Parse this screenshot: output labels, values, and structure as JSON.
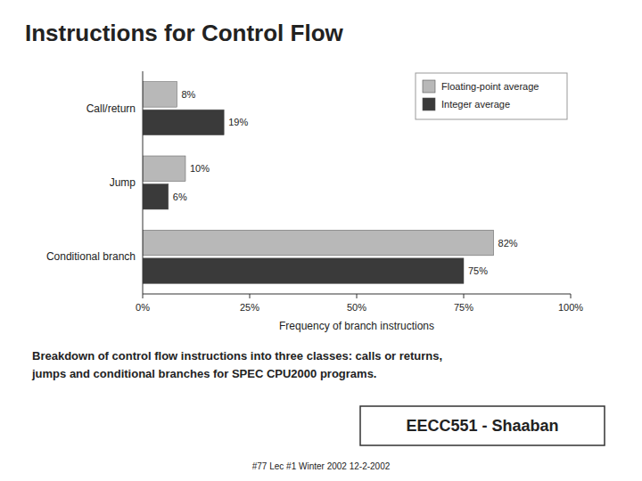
{
  "chart_data": {
    "type": "bar",
    "orientation": "horizontal",
    "title": "Instructions for Control Flow",
    "categories": [
      "Conditional branch",
      "Jump",
      "Call/return"
    ],
    "series": [
      {
        "name": "Floating-point average",
        "color": "#b8b8b8",
        "values": [
          82,
          10,
          8
        ],
        "value_labels": [
          "82%",
          "10%",
          "8%"
        ]
      },
      {
        "name": "Integer average",
        "color": "#3a3a3a",
        "values": [
          75,
          6,
          19
        ],
        "value_labels": [
          "75%",
          "6%",
          "19%"
        ]
      }
    ],
    "xlabel": "Frequency of branch instructions",
    "xlim": [
      0,
      100
    ],
    "xticks": [
      {
        "value": 0,
        "label": "0%"
      },
      {
        "value": 25,
        "label": "25%"
      },
      {
        "value": 50,
        "label": "50%"
      },
      {
        "value": 75,
        "label": "75%"
      },
      {
        "value": 100,
        "label": "100%"
      }
    ],
    "legend": "upper right",
    "grid": false,
    "data_labels": true,
    "annotations": [
      "Breakdown of control flow instructions into three classes: calls or returns,",
      "jumps and conditional branches for SPEC CPU2000 programs.",
      "EECC551 - Shaaban",
      "#77   Lec #1 Winter 2002  12-2-2002"
    ]
  }
}
